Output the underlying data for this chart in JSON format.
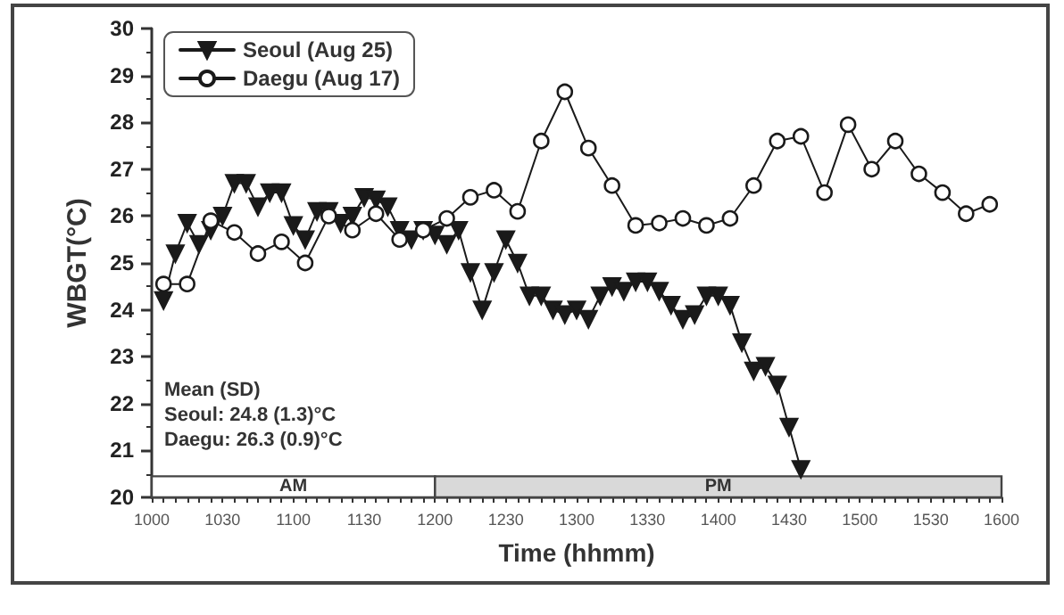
{
  "chart_data": {
    "type": "line",
    "xlabel": "Time (hhmm)",
    "ylabel": "WBGT(°C)",
    "categories": [
      "1000",
      null,
      null,
      null,
      null,
      null,
      "1030",
      null,
      null,
      null,
      null,
      null,
      "1100",
      null,
      null,
      null,
      null,
      null,
      "1130",
      null,
      null,
      null,
      null,
      null,
      "1200",
      null,
      null,
      null,
      null,
      null,
      "1230",
      null,
      null,
      null,
      null,
      null,
      "1300",
      null,
      null,
      null,
      null,
      null,
      "1330",
      null,
      null,
      null,
      null,
      null,
      "1400",
      null,
      null,
      null,
      null,
      null,
      "1430",
      null,
      null,
      null,
      null,
      null,
      "1500",
      null,
      null,
      null,
      null,
      null,
      "1530",
      null,
      null,
      null,
      null,
      null,
      "1600"
    ],
    "ylim": [
      20,
      30
    ],
    "yticks": [
      20,
      21,
      22,
      23,
      24,
      25,
      26,
      27,
      28,
      29,
      30
    ],
    "grid": false,
    "legend": "top left",
    "line_style": "solid",
    "series": [
      {
        "name": "Seoul (Aug 25)",
        "color": "#1a1a1a",
        "marker": "triangle",
        "values": [
          null,
          24.2,
          25.2,
          25.85,
          25.4,
          25.7,
          26.0,
          26.7,
          26.7,
          26.2,
          26.5,
          26.5,
          25.8,
          25.5,
          26.1,
          26.1,
          25.85,
          26.0,
          26.4,
          26.35,
          26.2,
          25.7,
          25.5,
          25.7,
          25.6,
          25.4,
          25.7,
          24.8,
          24.0,
          24.8,
          25.5,
          25.0,
          24.3,
          24.3,
          24.0,
          23.9,
          24.0,
          23.8,
          24.3,
          24.5,
          24.4,
          24.6,
          24.6,
          24.4,
          24.1,
          23.8,
          23.9,
          24.3,
          24.3,
          24.1,
          23.3,
          22.7,
          22.8,
          22.4,
          21.5,
          20.6,
          null,
          null,
          null,
          null,
          null,
          null,
          null,
          null,
          null,
          null,
          null,
          null,
          null,
          null,
          null,
          null,
          null
        ]
      },
      {
        "name": "Daegu (Aug 17)",
        "color": "#1a1a1a",
        "marker": "circle",
        "values": [
          null,
          24.55,
          null,
          24.55,
          null,
          25.9,
          null,
          25.65,
          null,
          25.2,
          null,
          25.45,
          null,
          25.0,
          null,
          26.0,
          null,
          25.7,
          null,
          26.05,
          null,
          25.5,
          null,
          25.7,
          null,
          25.95,
          null,
          26.4,
          null,
          26.55,
          null,
          26.1,
          null,
          27.6,
          null,
          28.65,
          null,
          27.45,
          null,
          26.65,
          null,
          25.8,
          null,
          25.85,
          null,
          25.95,
          null,
          25.8,
          null,
          25.95,
          null,
          26.65,
          null,
          27.6,
          null,
          27.7,
          null,
          26.5,
          null,
          27.95,
          null,
          27.0,
          null,
          27.6,
          null,
          26.9,
          null,
          26.5,
          null,
          26.05,
          null,
          26.25,
          null
        ]
      }
    ],
    "bands": [
      {
        "axis": "x",
        "from": "1000",
        "to": "1200",
        "label": "AM",
        "color": "#ffffff"
      },
      {
        "axis": "x",
        "from": "1200",
        "to": "1600",
        "label": "PM",
        "color": "#d9d9d9"
      }
    ],
    "annotations": [
      "Mean (SD)",
      "Seoul: 24.8 (1.3)°C",
      "Daegu: 26.3 (0.9)°C"
    ]
  }
}
